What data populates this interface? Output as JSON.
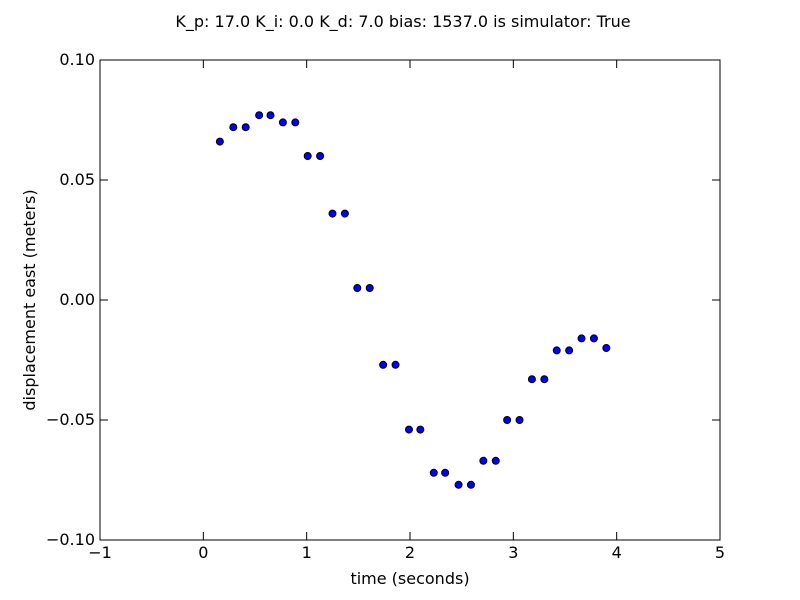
{
  "chart_data": {
    "type": "scatter",
    "title": "K_p: 17.0 K_i: 0.0 K_d: 7.0 bias: 1537.0 is simulator: True",
    "xlabel": "time (seconds)",
    "ylabel": "displacement east (meters)",
    "xlim": [
      -1,
      5
    ],
    "ylim": [
      -0.1,
      0.1
    ],
    "xticks": [
      -1,
      0,
      1,
      2,
      3,
      4,
      5
    ],
    "yticks": [
      -0.1,
      -0.05,
      0.0,
      0.05,
      0.1
    ],
    "xtick_labels": [
      "−1",
      "0",
      "1",
      "2",
      "3",
      "4",
      "5"
    ],
    "ytick_labels": [
      "−0.10",
      "−0.05",
      "0.00",
      "0.05",
      "0.10"
    ],
    "grid": false,
    "marker_color": "#0000ff",
    "marker_edge_color": "#000000",
    "points": [
      {
        "x": 0.16,
        "y": 0.066
      },
      {
        "x": 0.29,
        "y": 0.072
      },
      {
        "x": 0.41,
        "y": 0.072
      },
      {
        "x": 0.54,
        "y": 0.077
      },
      {
        "x": 0.65,
        "y": 0.077
      },
      {
        "x": 0.77,
        "y": 0.074
      },
      {
        "x": 0.89,
        "y": 0.074
      },
      {
        "x": 1.01,
        "y": 0.06
      },
      {
        "x": 1.13,
        "y": 0.06
      },
      {
        "x": 1.25,
        "y": 0.036
      },
      {
        "x": 1.37,
        "y": 0.036
      },
      {
        "x": 1.49,
        "y": 0.005
      },
      {
        "x": 1.61,
        "y": 0.005
      },
      {
        "x": 1.74,
        "y": -0.027
      },
      {
        "x": 1.86,
        "y": -0.027
      },
      {
        "x": 1.99,
        "y": -0.054
      },
      {
        "x": 2.1,
        "y": -0.054
      },
      {
        "x": 2.23,
        "y": -0.072
      },
      {
        "x": 2.34,
        "y": -0.072
      },
      {
        "x": 2.47,
        "y": -0.077
      },
      {
        "x": 2.59,
        "y": -0.077
      },
      {
        "x": 2.71,
        "y": -0.067
      },
      {
        "x": 2.83,
        "y": -0.067
      },
      {
        "x": 2.94,
        "y": -0.05
      },
      {
        "x": 3.06,
        "y": -0.05
      },
      {
        "x": 3.18,
        "y": -0.033
      },
      {
        "x": 3.3,
        "y": -0.033
      },
      {
        "x": 3.42,
        "y": -0.021
      },
      {
        "x": 3.54,
        "y": -0.021
      },
      {
        "x": 3.66,
        "y": -0.016
      },
      {
        "x": 3.78,
        "y": -0.016
      },
      {
        "x": 3.9,
        "y": -0.02
      }
    ]
  }
}
